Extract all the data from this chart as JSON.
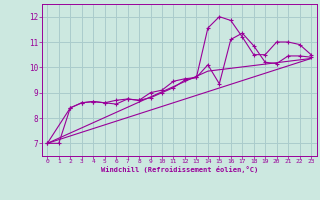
{
  "xlabel": "Windchill (Refroidissement éolien,°C)",
  "bg_color": "#cce8e0",
  "grid_color": "#aacccc",
  "line_color": "#990099",
  "xlim": [
    -0.5,
    23.5
  ],
  "ylim": [
    6.5,
    12.5
  ],
  "xticks": [
    0,
    1,
    2,
    3,
    4,
    5,
    6,
    7,
    8,
    9,
    10,
    11,
    12,
    13,
    14,
    15,
    16,
    17,
    18,
    19,
    20,
    21,
    22,
    23
  ],
  "yticks": [
    7,
    8,
    9,
    10,
    11,
    12
  ],
  "curve1_x": [
    0,
    1,
    2,
    3,
    4,
    5,
    6,
    7,
    8,
    9,
    10,
    11,
    12,
    13,
    14,
    15,
    16,
    17,
    18,
    19,
    20,
    21,
    22,
    23
  ],
  "curve1_y": [
    7.0,
    7.0,
    8.4,
    8.6,
    8.65,
    8.6,
    8.7,
    8.75,
    8.7,
    8.8,
    9.0,
    9.2,
    9.5,
    9.6,
    11.55,
    12.0,
    11.85,
    11.2,
    10.5,
    10.5,
    11.0,
    11.0,
    10.9,
    10.5
  ],
  "curve2_x": [
    0,
    2,
    3,
    4,
    5,
    6,
    7,
    8,
    9,
    10,
    11,
    12,
    13,
    14,
    15,
    16,
    17,
    18,
    19,
    20,
    21,
    22,
    23
  ],
  "curve2_y": [
    7.0,
    8.4,
    8.6,
    8.65,
    8.6,
    8.55,
    8.75,
    8.7,
    9.0,
    9.1,
    9.45,
    9.55,
    9.6,
    10.1,
    9.35,
    11.1,
    11.35,
    10.85,
    10.2,
    10.15,
    10.45,
    10.45,
    10.4
  ],
  "curve3_x": [
    0,
    23
  ],
  "curve3_y": [
    7.0,
    10.35
  ],
  "curve4_x": [
    0,
    14,
    23
  ],
  "curve4_y": [
    7.0,
    9.85,
    10.35
  ]
}
